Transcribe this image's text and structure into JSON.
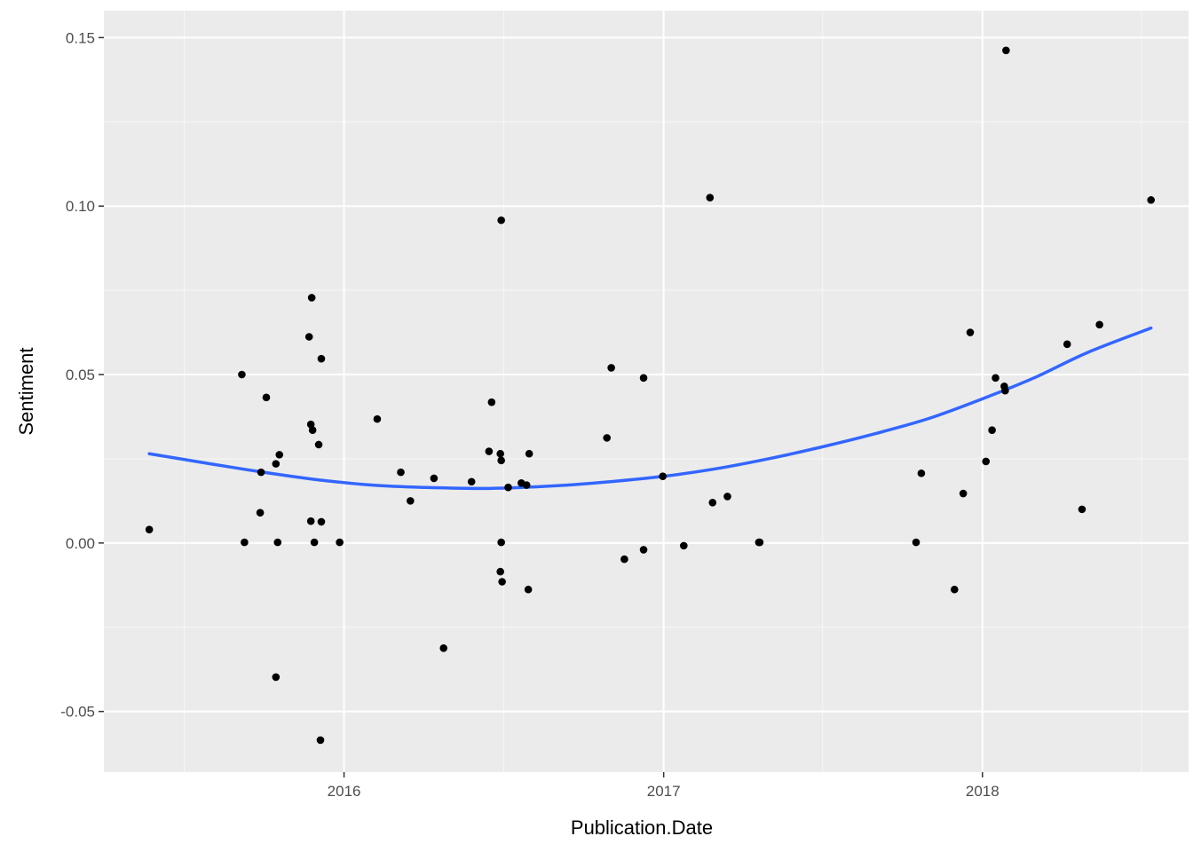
{
  "chart_data": {
    "type": "scatter",
    "title": "",
    "xlabel": "Publication.Date",
    "ylabel": "Sentiment",
    "xlim": [
      "2015-04-01",
      "2018-08-25"
    ],
    "ylim": [
      -0.068,
      0.158
    ],
    "x_ticks": [
      {
        "value": "2016-01-01",
        "label": "2016"
      },
      {
        "value": "2017-01-01",
        "label": "2017"
      },
      {
        "value": "2018-01-01",
        "label": "2018"
      }
    ],
    "x_minor": [
      "2015-07-02",
      "2016-07-02",
      "2017-07-02",
      "2018-07-02"
    ],
    "y_ticks": [
      {
        "value": -0.05,
        "label": "-0.05"
      },
      {
        "value": 0.0,
        "label": "0.00"
      },
      {
        "value": 0.05,
        "label": "0.05"
      },
      {
        "value": 0.1,
        "label": "0.10"
      },
      {
        "value": 0.15,
        "label": "0.15"
      }
    ],
    "y_minor": [
      -0.025,
      0.025,
      0.075,
      0.125
    ],
    "grid": true,
    "points": [
      {
        "date": "2015-05-23",
        "y": 0.004
      },
      {
        "date": "2015-09-06",
        "y": 0.05
      },
      {
        "date": "2015-09-09",
        "y": 0.0002
      },
      {
        "date": "2015-09-27",
        "y": 0.009
      },
      {
        "date": "2015-09-28",
        "y": 0.021
      },
      {
        "date": "2015-10-04",
        "y": 0.0432
      },
      {
        "date": "2015-10-15",
        "y": 0.0235
      },
      {
        "date": "2015-10-17",
        "y": 0.0002
      },
      {
        "date": "2015-10-15",
        "y": -0.0398
      },
      {
        "date": "2015-10-19",
        "y": 0.0262
      },
      {
        "date": "2015-11-22",
        "y": 0.0612
      },
      {
        "date": "2015-11-24",
        "y": 0.0352
      },
      {
        "date": "2015-11-24",
        "y": 0.0065
      },
      {
        "date": "2015-11-25",
        "y": 0.0728
      },
      {
        "date": "2015-11-26",
        "y": 0.0335
      },
      {
        "date": "2015-11-28",
        "y": 0.0002
      },
      {
        "date": "2015-12-03",
        "y": 0.0292
      },
      {
        "date": "2015-12-06",
        "y": 0.0547
      },
      {
        "date": "2015-12-06",
        "y": 0.0063
      },
      {
        "date": "2015-12-05",
        "y": -0.0585
      },
      {
        "date": "2015-12-27",
        "y": 0.0002
      },
      {
        "date": "2016-02-08",
        "y": 0.0368
      },
      {
        "date": "2016-03-06",
        "y": 0.021
      },
      {
        "date": "2016-03-17",
        "y": 0.0125
      },
      {
        "date": "2016-04-13",
        "y": 0.0192
      },
      {
        "date": "2016-04-24",
        "y": -0.0312
      },
      {
        "date": "2016-05-26",
        "y": 0.0182
      },
      {
        "date": "2016-06-15",
        "y": 0.0272
      },
      {
        "date": "2016-06-18",
        "y": 0.0418
      },
      {
        "date": "2016-06-29",
        "y": 0.0958
      },
      {
        "date": "2016-06-28",
        "y": 0.0265
      },
      {
        "date": "2016-06-29",
        "y": 0.0245
      },
      {
        "date": "2016-06-29",
        "y": 0.0002
      },
      {
        "date": "2016-06-28",
        "y": -0.0085
      },
      {
        "date": "2016-06-30",
        "y": -0.0115
      },
      {
        "date": "2016-07-07",
        "y": 0.0165
      },
      {
        "date": "2016-07-22",
        "y": 0.0178
      },
      {
        "date": "2016-07-28",
        "y": 0.0172
      },
      {
        "date": "2016-07-31",
        "y": 0.0265
      },
      {
        "date": "2016-07-30",
        "y": -0.0138
      },
      {
        "date": "2016-10-28",
        "y": 0.0312
      },
      {
        "date": "2016-11-02",
        "y": 0.052
      },
      {
        "date": "2016-11-17",
        "y": -0.0048
      },
      {
        "date": "2016-12-09",
        "y": 0.049
      },
      {
        "date": "2016-12-09",
        "y": -0.002
      },
      {
        "date": "2016-12-31",
        "y": 0.0198
      },
      {
        "date": "2017-01-24",
        "y": -0.0008
      },
      {
        "date": "2017-02-23",
        "y": 0.1025
      },
      {
        "date": "2017-02-26",
        "y": 0.012
      },
      {
        "date": "2017-03-15",
        "y": 0.0138
      },
      {
        "date": "2017-04-20",
        "y": 0.0002
      },
      {
        "date": "2017-04-21",
        "y": 0.0002
      },
      {
        "date": "2017-10-17",
        "y": 0.0002
      },
      {
        "date": "2017-10-23",
        "y": 0.0207
      },
      {
        "date": "2017-11-30",
        "y": -0.0138
      },
      {
        "date": "2017-12-10",
        "y": 0.0147
      },
      {
        "date": "2017-12-18",
        "y": 0.0625
      },
      {
        "date": "2018-01-05",
        "y": 0.0242
      },
      {
        "date": "2018-01-12",
        "y": 0.0335
      },
      {
        "date": "2018-01-16",
        "y": 0.049
      },
      {
        "date": "2018-01-26",
        "y": 0.0465
      },
      {
        "date": "2018-01-27",
        "y": 0.0452
      },
      {
        "date": "2018-01-28",
        "y": 0.1462
      },
      {
        "date": "2018-04-08",
        "y": 0.059
      },
      {
        "date": "2018-04-25",
        "y": 0.01
      },
      {
        "date": "2018-05-15",
        "y": 0.0648
      },
      {
        "date": "2018-07-13",
        "y": 0.1018
      }
    ],
    "smooth": {
      "method": "loess",
      "color": "#3366ff",
      "points": [
        {
          "date": "2015-05-23",
          "y": 0.0265
        },
        {
          "date": "2015-08-01",
          "y": 0.0235
        },
        {
          "date": "2015-10-01",
          "y": 0.021
        },
        {
          "date": "2015-12-01",
          "y": 0.0188
        },
        {
          "date": "2016-02-01",
          "y": 0.0172
        },
        {
          "date": "2016-04-01",
          "y": 0.0165
        },
        {
          "date": "2016-06-15",
          "y": 0.0162
        },
        {
          "date": "2016-09-01",
          "y": 0.017
        },
        {
          "date": "2016-11-01",
          "y": 0.0182
        },
        {
          "date": "2017-01-01",
          "y": 0.0198
        },
        {
          "date": "2017-03-01",
          "y": 0.022
        },
        {
          "date": "2017-05-01",
          "y": 0.025
        },
        {
          "date": "2017-07-01",
          "y": 0.0285
        },
        {
          "date": "2017-09-01",
          "y": 0.0325
        },
        {
          "date": "2017-11-01",
          "y": 0.037
        },
        {
          "date": "2018-01-01",
          "y": 0.0428
        },
        {
          "date": "2018-03-01",
          "y": 0.049
        },
        {
          "date": "2018-05-01",
          "y": 0.0565
        },
        {
          "date": "2018-07-13",
          "y": 0.0638
        }
      ]
    },
    "colors": {
      "panel_background": "#ebebeb",
      "major_grid": "#ffffff",
      "point": "#000000",
      "line": "#3366ff"
    }
  }
}
